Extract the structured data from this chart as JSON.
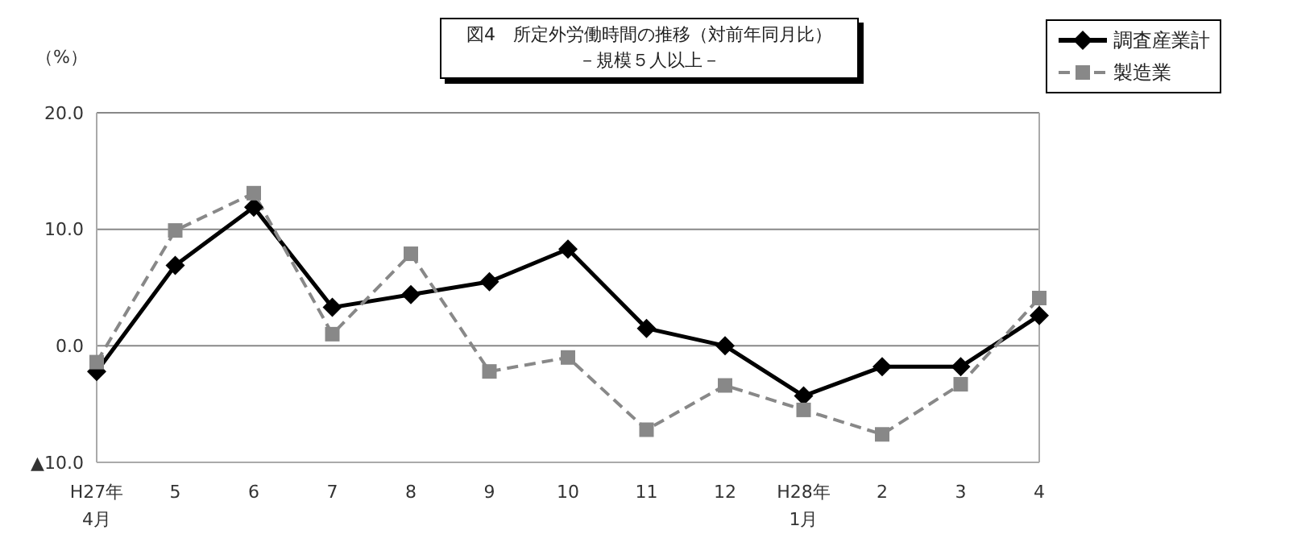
{
  "chart_data": {
    "type": "line",
    "title": "図4　所定外労働時間の推移（対前年同月比）",
    "subtitle": "－規模５人以上－",
    "ylabel": "（%）",
    "categories": [
      "H27年\n4月",
      "5",
      "6",
      "7",
      "8",
      "9",
      "10",
      "11",
      "12",
      "H28年\n1月",
      "2",
      "3",
      "4"
    ],
    "series": [
      {
        "name": "調査産業計",
        "color": "#000000",
        "marker": "diamond",
        "line_style": "solid",
        "values": [
          -2.2,
          6.9,
          11.9,
          3.3,
          4.4,
          5.5,
          8.3,
          1.5,
          0.0,
          -4.3,
          -1.8,
          -1.8,
          2.6
        ]
      },
      {
        "name": "製造業",
        "color": "#888888",
        "marker": "square",
        "line_style": "dashed",
        "values": [
          -1.4,
          9.9,
          13.1,
          1.0,
          7.9,
          -2.2,
          -1.0,
          -7.2,
          -3.4,
          -5.5,
          -7.6,
          -3.3,
          4.1
        ]
      }
    ],
    "ylim": [
      -10,
      20
    ],
    "yticks": [
      {
        "value": -10,
        "label": "▲10.0"
      },
      {
        "value": 0,
        "label": "0.0"
      },
      {
        "value": 10,
        "label": "10.0"
      },
      {
        "value": 20,
        "label": "20.0"
      }
    ],
    "grid": "y",
    "legend": "top right"
  }
}
